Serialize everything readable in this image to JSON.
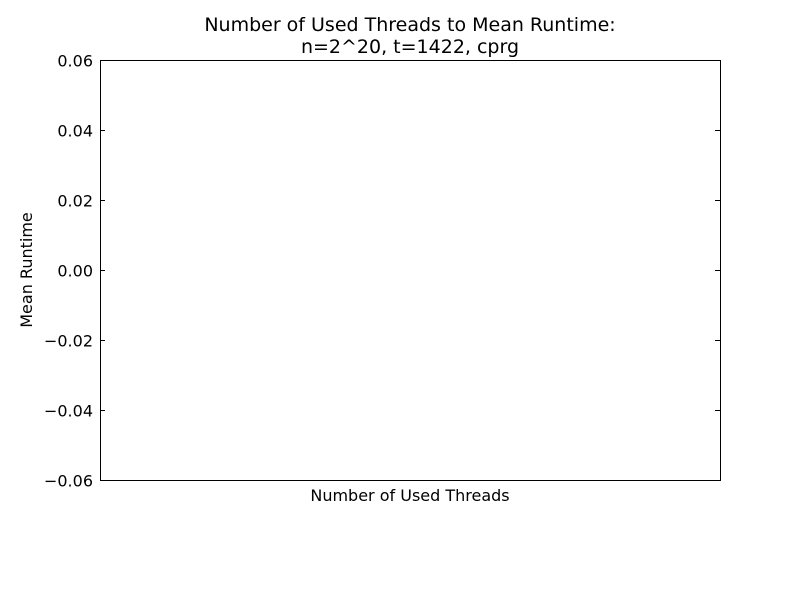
{
  "chart_data": {
    "type": "line",
    "title": "Number of Used Threads to Mean Runtime:\nn=2^20, t=1422, cprg",
    "xlabel": "Number of Used Threads",
    "ylabel": "Mean Runtime",
    "ylim": [
      -0.06,
      0.06
    ],
    "yticks": [
      -0.06,
      -0.04,
      -0.02,
      0.0,
      0.02,
      0.04,
      0.06
    ],
    "ytick_labels": [
      "−0.06",
      "−0.04",
      "−0.02",
      "0.00",
      "0.02",
      "0.04",
      "0.06"
    ],
    "xticks": [],
    "series": [],
    "grid": false,
    "legend": "none"
  }
}
